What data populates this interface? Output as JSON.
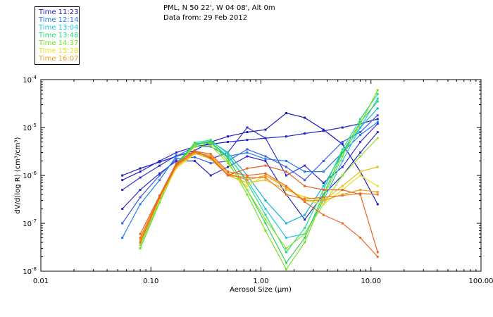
{
  "header": {
    "station": "PML, N 50 22', W 04 08', Alt 0m",
    "date_line": "Data from: 29 Feb 2012"
  },
  "legend": [
    {
      "label": "Time 11:23",
      "color": "#1a1ab8"
    },
    {
      "label": "Time 12:14",
      "color": "#1e7cf0"
    },
    {
      "label": "Time 13:04",
      "color": "#20c8e0"
    },
    {
      "label": "Time 13:48",
      "color": "#20e080"
    },
    {
      "label": "Time 14:37",
      "color": "#78e020"
    },
    {
      "label": "Time 15:28",
      "color": "#e8e020"
    },
    {
      "label": "Time 16:07",
      "color": "#f0a020"
    }
  ],
  "chart_data": {
    "type": "line",
    "title": "PML, N 50 22', W 04 08', Alt 0m",
    "subtitle": "Data from: 29 Feb 2012",
    "xlabel": "Aerosol Size (μm)",
    "ylabel": "dV/d(log R) (cm³/cm³)",
    "x_scale": "log",
    "y_scale": "log",
    "xlim": [
      0.01,
      100
    ],
    "ylim": [
      1e-08,
      0.0001
    ],
    "x_ticks": [
      {
        "value": 0.01,
        "label": "0.01"
      },
      {
        "value": 0.1,
        "label": "0.10"
      },
      {
        "value": 1,
        "label": "1.00"
      },
      {
        "value": 10,
        "label": "10.00"
      },
      {
        "value": 100,
        "label": "100.00"
      }
    ],
    "y_ticks": [
      {
        "value": 1e-08,
        "base": "10",
        "exp": "-8"
      },
      {
        "value": 1e-07,
        "base": "10",
        "exp": "-7"
      },
      {
        "value": 1e-06,
        "base": "10",
        "exp": "-6"
      },
      {
        "value": 1e-05,
        "base": "10",
        "exp": "-5"
      },
      {
        "value": 0.0001,
        "base": "10",
        "exp": "-4"
      }
    ],
    "x": [
      0.055,
      0.08,
      0.12,
      0.17,
      0.25,
      0.35,
      0.5,
      0.75,
      1.1,
      1.7,
      2.5,
      3.7,
      5.5,
      8.0,
      11.5
    ],
    "series": [
      {
        "name": "Time 11:23",
        "color": "#1a1ab8",
        "values": [
          1e-06,
          1.4e-06,
          1.9e-06,
          2.5e-06,
          3.3e-06,
          5e-06,
          6.5e-06,
          8e-06,
          9e-06,
          2e-05,
          1.6e-05,
          9e-06,
          4.5e-06,
          1.2e-06,
          2.5e-07
        ]
      },
      {
        "name": "Time 11:23",
        "color": "#2222c8",
        "values": [
          8e-07,
          1.2e-06,
          2e-06,
          3e-06,
          4e-06,
          4.5e-06,
          5e-06,
          5.5e-06,
          6e-06,
          6.5e-06,
          7.5e-06,
          8.5e-06,
          1e-05,
          1.2e-05,
          1.5e-05
        ]
      },
      {
        "name": "Time 11:23",
        "color": "#3030d0",
        "values": [
          5e-07,
          9e-07,
          1.6e-06,
          2.6e-06,
          3e-06,
          2.2e-06,
          3e-06,
          1e-05,
          6e-06,
          1e-06,
          1.6e-06,
          7e-07,
          1.5e-06,
          5e-06,
          1.2e-05
        ]
      },
      {
        "name": "Time 11:23",
        "color": "#2828c0",
        "values": [
          2e-07,
          5e-07,
          1.1e-06,
          2e-06,
          2e-06,
          1e-06,
          1.5e-06,
          2.5e-06,
          2e-06,
          4e-07,
          1.2e-07,
          4e-07,
          1e-06,
          3e-06,
          8e-06
        ]
      },
      {
        "name": "Time 12:14",
        "color": "#3a5ae0",
        "values": [
          1e-07,
          3.5e-07,
          1e-06,
          2.2e-06,
          2.4e-06,
          1.8e-06,
          2e-06,
          3.5e-06,
          2.5e-06,
          1.5e-06,
          8e-07,
          2e-06,
          5e-06,
          8e-06,
          1.8e-05
        ]
      },
      {
        "name": "Time 12:14",
        "color": "#1e7cf0",
        "values": [
          5e-08,
          2.5e-07,
          8e-07,
          2.5e-06,
          4e-06,
          4e-06,
          2.5e-06,
          3e-06,
          2.2e-06,
          2e-06,
          1.2e-06,
          1.2e-06,
          3e-06,
          7e-06,
          1.3e-05
        ]
      },
      {
        "name": "Time 13:04",
        "color": "#20c8e0",
        "values": [
          null,
          3e-08,
          2.8e-07,
          1.5e-06,
          4.2e-06,
          5e-06,
          2.5e-06,
          8e-07,
          2e-07,
          5e-08,
          6e-08,
          3e-07,
          2e-06,
          1e-05,
          4e-05
        ]
      },
      {
        "name": "Time 13:04",
        "color": "#18b0d8",
        "values": [
          null,
          4e-08,
          3.5e-07,
          1.8e-06,
          4.5e-06,
          5.2e-06,
          3e-06,
          1e-06,
          3e-07,
          1e-07,
          1.5e-07,
          6e-07,
          3e-06,
          1e-05,
          2.5e-05
        ]
      },
      {
        "name": "Time 13:48",
        "color": "#20e080",
        "values": [
          null,
          3.5e-08,
          3e-07,
          1.6e-06,
          4.8e-06,
          5.5e-06,
          2.8e-06,
          7e-07,
          1.5e-07,
          2.5e-08,
          8e-08,
          5e-07,
          3.5e-06,
          1.5e-05,
          5e-05
        ]
      },
      {
        "name": "Time 13:48",
        "color": "#30d060",
        "values": [
          null,
          4e-08,
          3.3e-07,
          1.7e-06,
          4.6e-06,
          5e-06,
          2.3e-06,
          5e-07,
          1e-07,
          1.5e-08,
          5e-08,
          4e-07,
          3e-06,
          1.3e-05,
          3.5e-05
        ]
      },
      {
        "name": "Time 14:37",
        "color": "#78e020",
        "values": [
          null,
          3e-08,
          2.7e-07,
          1.5e-06,
          4.4e-06,
          4.8e-06,
          2e-06,
          4e-07,
          7e-08,
          1.1e-08,
          4e-08,
          3.5e-07,
          2.5e-06,
          1.2e-05,
          6e-05
        ]
      },
      {
        "name": "Time 14:37",
        "color": "#98e030",
        "values": [
          null,
          3.5e-08,
          3e-07,
          1.6e-06,
          4e-06,
          4.2e-06,
          1.8e-06,
          5e-07,
          1.2e-07,
          3e-08,
          6e-08,
          2.5e-07,
          1e-06,
          2.5e-06,
          6e-06
        ]
      },
      {
        "name": "Time 15:28",
        "color": "#e8e020",
        "values": [
          null,
          4e-08,
          3.2e-07,
          1.4e-06,
          2.8e-06,
          2.5e-06,
          1.1e-06,
          6e-07,
          1e-06,
          6e-07,
          3e-07,
          2.5e-07,
          5e-07,
          1e-06,
          6e-07
        ]
      },
      {
        "name": "Time 15:28",
        "color": "#e8c020",
        "values": [
          null,
          5e-08,
          3.5e-07,
          1.5e-06,
          2.9e-06,
          2.2e-06,
          1e-06,
          7e-07,
          8e-07,
          5e-07,
          3.5e-07,
          3e-07,
          6e-07,
          1.2e-06,
          1.5e-06
        ]
      },
      {
        "name": "Time 16:07",
        "color": "#f0a020",
        "values": [
          null,
          4.5e-08,
          3.5e-07,
          1.6e-06,
          3e-06,
          2.6e-06,
          1.1e-06,
          8e-07,
          1e-06,
          5.5e-07,
          3e-07,
          3e-07,
          4e-07,
          5e-07,
          4.5e-07
        ]
      },
      {
        "name": "Time 16:07",
        "color": "#f07820",
        "values": [
          null,
          5e-08,
          3.6e-07,
          1.7e-06,
          3.1e-06,
          2.4e-06,
          1e-06,
          9e-07,
          9e-07,
          4e-07,
          3.2e-07,
          3.5e-07,
          3.8e-07,
          4.2e-07,
          4e-07
        ]
      },
      {
        "name": "Time 16:07",
        "color": "#f06820",
        "values": [
          null,
          4e-08,
          3.4e-07,
          1.6e-06,
          3.2e-06,
          2.8e-06,
          1.2e-06,
          1e-06,
          1.1e-06,
          6e-07,
          2.8e-07,
          1.5e-07,
          1e-07,
          5e-08,
          2e-08
        ]
      },
      {
        "name": "Time 16:07",
        "color": "#e86020",
        "values": [
          null,
          6e-08,
          3.8e-07,
          1.8e-06,
          3.3e-06,
          2.3e-06,
          1e-06,
          1.4e-06,
          1.6e-06,
          1.2e-06,
          6e-07,
          5e-07,
          5e-07,
          4e-07,
          2.5e-08
        ]
      }
    ]
  }
}
